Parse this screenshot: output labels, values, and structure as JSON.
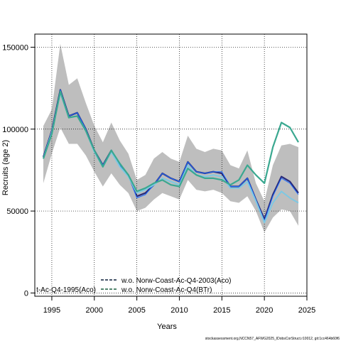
{
  "chart_data": {
    "type": "line",
    "xlabel": "Years",
    "ylabel": "Recruits (age 2)",
    "xlim": [
      1993,
      2025
    ],
    "ylim": [
      -2000,
      158000
    ],
    "x_ticks": [
      1995,
      2000,
      2005,
      2010,
      2015,
      2020,
      2025
    ],
    "y_ticks": [
      0,
      50000,
      100000,
      150000
    ],
    "y_tick_labels": [
      "0",
      "50000",
      "100000",
      "150000"
    ],
    "grid": true,
    "legend_position": "bottom",
    "legend": [
      {
        "label": "t-Ac-Q4-1995(Aco)",
        "color": "#0b1e3a",
        "style": "dashed"
      },
      {
        "label": "w.o. Norw-Coast-Ac-Q4-2003(Aco)",
        "color": "#0b1e3a",
        "style": "dashed"
      },
      {
        "label": "w.o. Norw-Coast-Ac-Q4(BTr)",
        "color": "#1a5e3f",
        "style": "dashed"
      }
    ],
    "band": {
      "x": [
        1994,
        1995,
        1996,
        1997,
        1998,
        1999,
        2000,
        2001,
        2002,
        2003,
        2004,
        2005,
        2006,
        2007,
        2008,
        2009,
        2010,
        2011,
        2012,
        2013,
        2014,
        2015,
        2016,
        2017,
        2018,
        2019,
        2020,
        2021,
        2022,
        2023,
        2024
      ],
      "upper": [
        102000,
        112000,
        152000,
        127000,
        131000,
        116000,
        102000,
        92000,
        104000,
        93000,
        85000,
        69000,
        72000,
        82000,
        86000,
        82000,
        80000,
        96000,
        88000,
        86000,
        88000,
        87000,
        78000,
        76000,
        87000,
        67000,
        56000,
        78000,
        90000,
        91000,
        89000
      ],
      "lower": [
        67000,
        85000,
        101000,
        91000,
        91000,
        84000,
        74000,
        65000,
        73000,
        66000,
        61000,
        50000,
        52000,
        57000,
        61000,
        59000,
        57000,
        69000,
        63000,
        62000,
        63000,
        61000,
        56000,
        55000,
        59000,
        50000,
        37000,
        46000,
        51000,
        50000,
        41000
      ]
    },
    "series": [
      {
        "color": "#2a2a7a",
        "width": 2.2,
        "x": [
          1994,
          1995,
          1996,
          1997,
          1998,
          1999,
          2000,
          2001,
          2002,
          2003,
          2004,
          2005,
          2006,
          2007,
          2008,
          2009,
          2010,
          2011,
          2012,
          2013,
          2014,
          2015,
          2016,
          2017,
          2018,
          2019,
          2020,
          2021,
          2022,
          2023,
          2024
        ],
        "y": [
          83000,
          99000,
          124000,
          108000,
          110000,
          100000,
          87000,
          78000,
          87000,
          78000,
          72000,
          59000,
          61000,
          66000,
          73000,
          70000,
          68000,
          80000,
          74000,
          73000,
          74000,
          73000,
          65000,
          65000,
          70000,
          57000,
          45000,
          60000,
          71000,
          68000,
          61000
        ]
      },
      {
        "color": "#1f6fff",
        "width": 1.0,
        "x": [
          1994,
          1995,
          1996,
          1997,
          1998,
          1999,
          2000,
          2001,
          2002,
          2003,
          2004,
          2005,
          2006,
          2007,
          2008,
          2009,
          2010,
          2011,
          2012,
          2013,
          2014,
          2015,
          2016,
          2017,
          2018,
          2019,
          2020,
          2021,
          2022,
          2023,
          2024
        ],
        "y": [
          83000,
          99000,
          124000,
          108000,
          110000,
          100000,
          87000,
          78000,
          87000,
          78000,
          72000,
          58000,
          60000,
          66000,
          73000,
          70000,
          68000,
          80000,
          74000,
          73000,
          74000,
          74000,
          65000,
          65000,
          70000,
          57000,
          44000,
          59000,
          70000,
          67000,
          60000
        ]
      },
      {
        "color": "#7ec8e3",
        "width": 2.0,
        "x": [
          1994,
          1995,
          1996,
          1997,
          1998,
          1999,
          2000,
          2001,
          2002,
          2003,
          2004,
          2005,
          2006,
          2007,
          2008,
          2009,
          2010,
          2011,
          2012,
          2013,
          2014,
          2015,
          2016,
          2017,
          2018,
          2019,
          2020,
          2021,
          2022,
          2023,
          2024
        ],
        "y": [
          82000,
          98000,
          122000,
          107000,
          108000,
          99000,
          86000,
          77000,
          86000,
          77000,
          71000,
          61000,
          63000,
          66000,
          70000,
          68000,
          66000,
          78000,
          72000,
          71000,
          72000,
          71000,
          64000,
          64000,
          68000,
          56000,
          43000,
          55000,
          62000,
          58000,
          55000
        ]
      },
      {
        "color": "#3aa890",
        "width": 2.2,
        "x": [
          1994,
          1995,
          1996,
          1997,
          1998,
          1999,
          2000,
          2001,
          2002,
          2003,
          2004,
          2005,
          2006,
          2007,
          2008,
          2009,
          2010,
          2011,
          2012,
          2013,
          2014,
          2015,
          2016,
          2017,
          2018,
          2019,
          2020,
          2021,
          2022,
          2023,
          2024
        ],
        "y": [
          82000,
          97000,
          123000,
          107000,
          108000,
          99000,
          87000,
          77000,
          87000,
          79000,
          72000,
          62000,
          64000,
          67000,
          69000,
          66000,
          65000,
          76000,
          72000,
          70000,
          70000,
          69000,
          66000,
          69000,
          78000,
          72000,
          67000,
          89000,
          104000,
          101000,
          92000
        ]
      }
    ]
  },
  "footer": "stockassessment.org,NCCN57_AFWG2025_IDobsCorStruct.r10012, git:1cc464b60f6"
}
